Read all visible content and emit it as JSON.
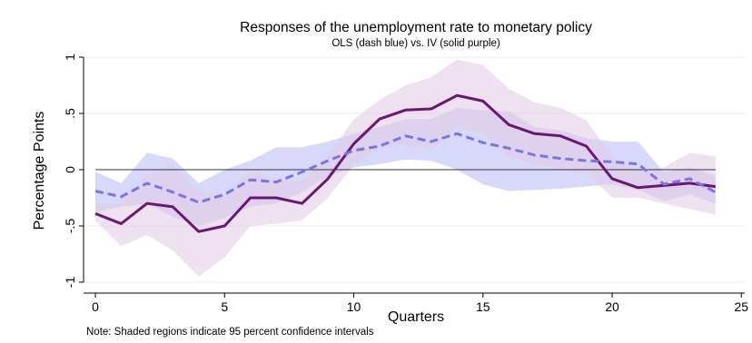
{
  "chart_data": {
    "type": "line",
    "title": "Responses of the unemployment rate to monetary policy",
    "subtitle": "OLS (dash blue) vs. IV (solid purple)",
    "xlabel": "Quarters",
    "ylabel": "Percentage Points",
    "note": "Note: Shaded regions indicate 95 percent confidence intervals",
    "xlim": [
      0,
      25
    ],
    "ylim": [
      -1,
      1
    ],
    "x_ticks": [
      0,
      5,
      10,
      15,
      20,
      25
    ],
    "x_tick_labels": [
      "0",
      "5",
      "10",
      "15",
      "20",
      "25"
    ],
    "y_ticks": [
      -1,
      -0.5,
      0,
      0.5,
      1
    ],
    "y_tick_labels": [
      "-1",
      "-.5",
      "0",
      ".5",
      "1"
    ],
    "grid": true,
    "x": [
      0,
      1,
      2,
      3,
      4,
      5,
      6,
      7,
      8,
      9,
      10,
      11,
      12,
      13,
      14,
      15,
      16,
      17,
      18,
      19,
      20,
      21,
      22,
      23,
      24
    ],
    "series": [
      {
        "name": "OLS",
        "color": "#7b74e6",
        "style": "dash",
        "values": [
          -0.19,
          -0.24,
          -0.12,
          -0.2,
          -0.29,
          -0.22,
          -0.09,
          -0.11,
          -0.02,
          0.08,
          0.17,
          0.21,
          0.3,
          0.25,
          0.32,
          0.24,
          0.19,
          0.13,
          0.1,
          0.08,
          0.07,
          0.05,
          -0.13,
          -0.08,
          -0.2
        ],
        "ci_lower": [
          -0.38,
          -0.33,
          -0.3,
          -0.42,
          -0.5,
          -0.43,
          -0.33,
          -0.3,
          -0.2,
          -0.06,
          0.02,
          0.05,
          0.09,
          0.08,
          0.0,
          -0.13,
          -0.19,
          -0.18,
          -0.17,
          -0.15,
          -0.13,
          -0.18,
          -0.28,
          -0.22,
          -0.3
        ],
        "ci_upper": [
          -0.02,
          -0.12,
          0.15,
          0.1,
          -0.12,
          0.0,
          0.08,
          0.2,
          0.2,
          0.25,
          0.32,
          0.38,
          0.45,
          0.45,
          0.55,
          0.53,
          0.52,
          0.38,
          0.35,
          0.28,
          0.25,
          0.25,
          -0.02,
          0.02,
          -0.05
        ],
        "band_color": "#b8b8f5"
      },
      {
        "name": "IV",
        "color": "#6c1673",
        "style": "solid",
        "values": [
          -0.39,
          -0.48,
          -0.3,
          -0.33,
          -0.55,
          -0.5,
          -0.25,
          -0.25,
          -0.3,
          -0.08,
          0.23,
          0.45,
          0.53,
          0.54,
          0.66,
          0.61,
          0.4,
          0.32,
          0.3,
          0.21,
          -0.08,
          -0.16,
          -0.14,
          -0.12,
          -0.15
        ],
        "ci_lower": [
          -0.45,
          -0.68,
          -0.58,
          -0.72,
          -0.95,
          -0.78,
          -0.5,
          -0.48,
          -0.45,
          -0.25,
          0.04,
          0.2,
          0.22,
          0.18,
          0.38,
          0.32,
          0.12,
          0.05,
          0.0,
          -0.02,
          -0.25,
          -0.25,
          -0.3,
          -0.35,
          -0.4
        ],
        "ci_upper": [
          -0.3,
          -0.3,
          -0.05,
          0.05,
          -0.2,
          -0.22,
          0.0,
          -0.1,
          -0.1,
          0.12,
          0.45,
          0.62,
          0.75,
          0.82,
          0.98,
          0.93,
          0.72,
          0.6,
          0.55,
          0.44,
          0.12,
          0.0,
          0.02,
          0.15,
          0.12
        ],
        "band_color": "#e2cde6"
      }
    ],
    "zero_line": 0
  }
}
